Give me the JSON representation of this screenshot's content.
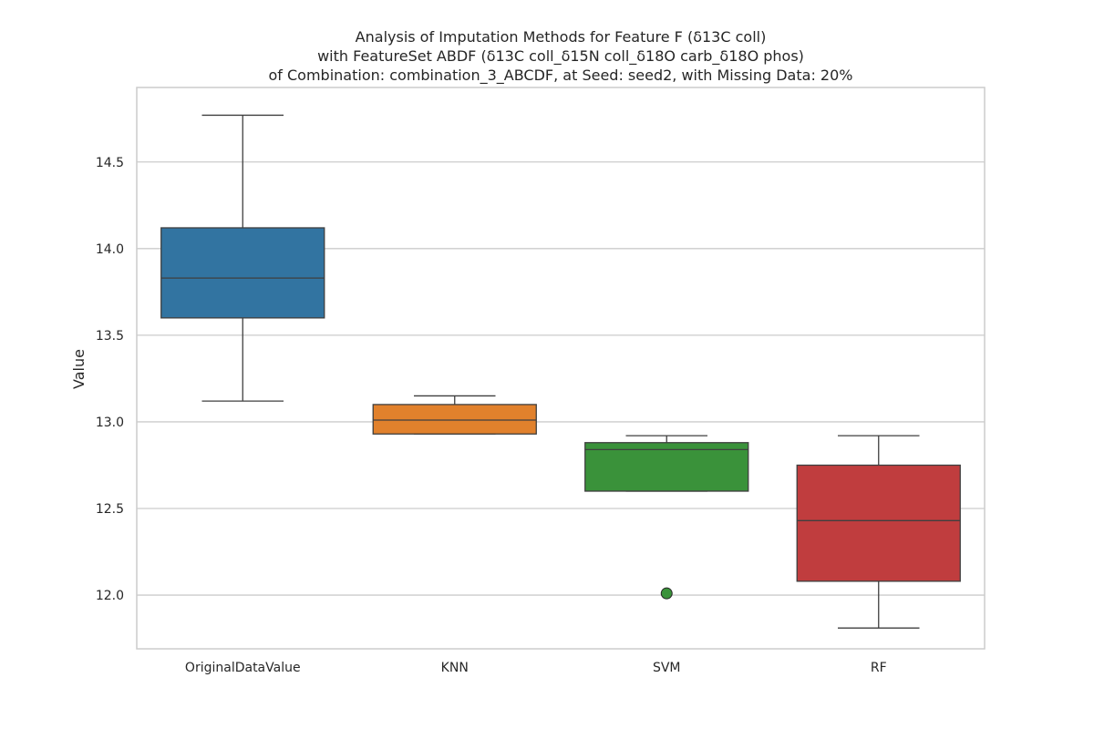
{
  "chart_data": {
    "type": "box",
    "title_lines": [
      "Analysis of Imputation Methods for Feature F (δ13C coll)",
      "with FeatureSet ABDF (δ13C coll_δ15N coll_δ18O carb_δ18O phos)",
      "of Combination: combination_3_ABCDF, at Seed: seed2, with Missing Data: 20%"
    ],
    "xlabel": "",
    "ylabel": "Value",
    "ylim": [
      11.69,
      14.93
    ],
    "yticks": [
      12.0,
      12.5,
      13.0,
      13.5,
      14.0,
      14.5
    ],
    "ytick_labels": [
      "12.0",
      "12.5",
      "13.0",
      "13.5",
      "14.0",
      "14.5"
    ],
    "grid": "horizontal",
    "categories": [
      "OriginalDataValue",
      "KNN",
      "SVM",
      "RF"
    ],
    "boxes": [
      {
        "category": "OriginalDataValue",
        "whisker_low": 13.12,
        "q1": 13.6,
        "median": 13.83,
        "q3": 14.12,
        "whisker_high": 14.77,
        "outliers": [],
        "color": "#3274a1"
      },
      {
        "category": "KNN",
        "whisker_low": 12.93,
        "q1": 12.93,
        "median": 13.01,
        "q3": 13.1,
        "whisker_high": 13.15,
        "outliers": [],
        "color": "#e1812c"
      },
      {
        "category": "SVM",
        "whisker_low": 12.6,
        "q1": 12.6,
        "median": 12.84,
        "q3": 12.88,
        "whisker_high": 12.92,
        "outliers": [
          12.01
        ],
        "color": "#3a923a"
      },
      {
        "category": "RF",
        "whisker_low": 11.81,
        "q1": 12.08,
        "median": 12.43,
        "q3": 12.75,
        "whisker_high": 12.92,
        "outliers": [],
        "color": "#c03d3e"
      }
    ]
  }
}
